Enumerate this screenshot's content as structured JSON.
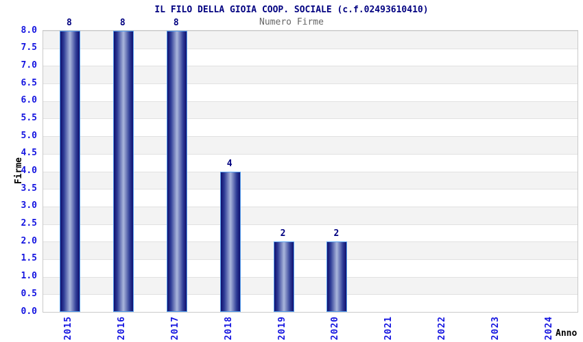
{
  "chart_data": {
    "type": "bar",
    "title": "IL FILO DELLA GIOIA COOP. SOCIALE (c.f.02493610410)",
    "subtitle": "Numero Firme",
    "xlabel": "Anno",
    "ylabel": "Firme",
    "categories": [
      "2015",
      "2016",
      "2017",
      "2018",
      "2019",
      "2020",
      "2021",
      "2022",
      "2023",
      "2024"
    ],
    "values": [
      8,
      8,
      8,
      4,
      2,
      2,
      0,
      0,
      0,
      0
    ],
    "value_labels": [
      "8",
      "8",
      "8",
      "4",
      "2",
      "2",
      "",
      "",
      "",
      ""
    ],
    "ylim": [
      0,
      8
    ],
    "ytick_step": 0.5,
    "legend": "none",
    "grid": "horizontal-bands",
    "colors": {
      "title": "#000080",
      "subtitle": "#666666",
      "tick_label": "#1414e0",
      "value_label": "#000080",
      "axis_label": "#000000",
      "bar_edge_dark": "#10106e",
      "bar_mid": "#2e3c96",
      "bar_center_light": "#aab6dc",
      "bar_border": "#55a0f0",
      "band_gray": "#f3f3f3",
      "band_white": "#ffffff",
      "gridline": "#e1e1e1",
      "plot_border": "#c9c9c9"
    }
  }
}
